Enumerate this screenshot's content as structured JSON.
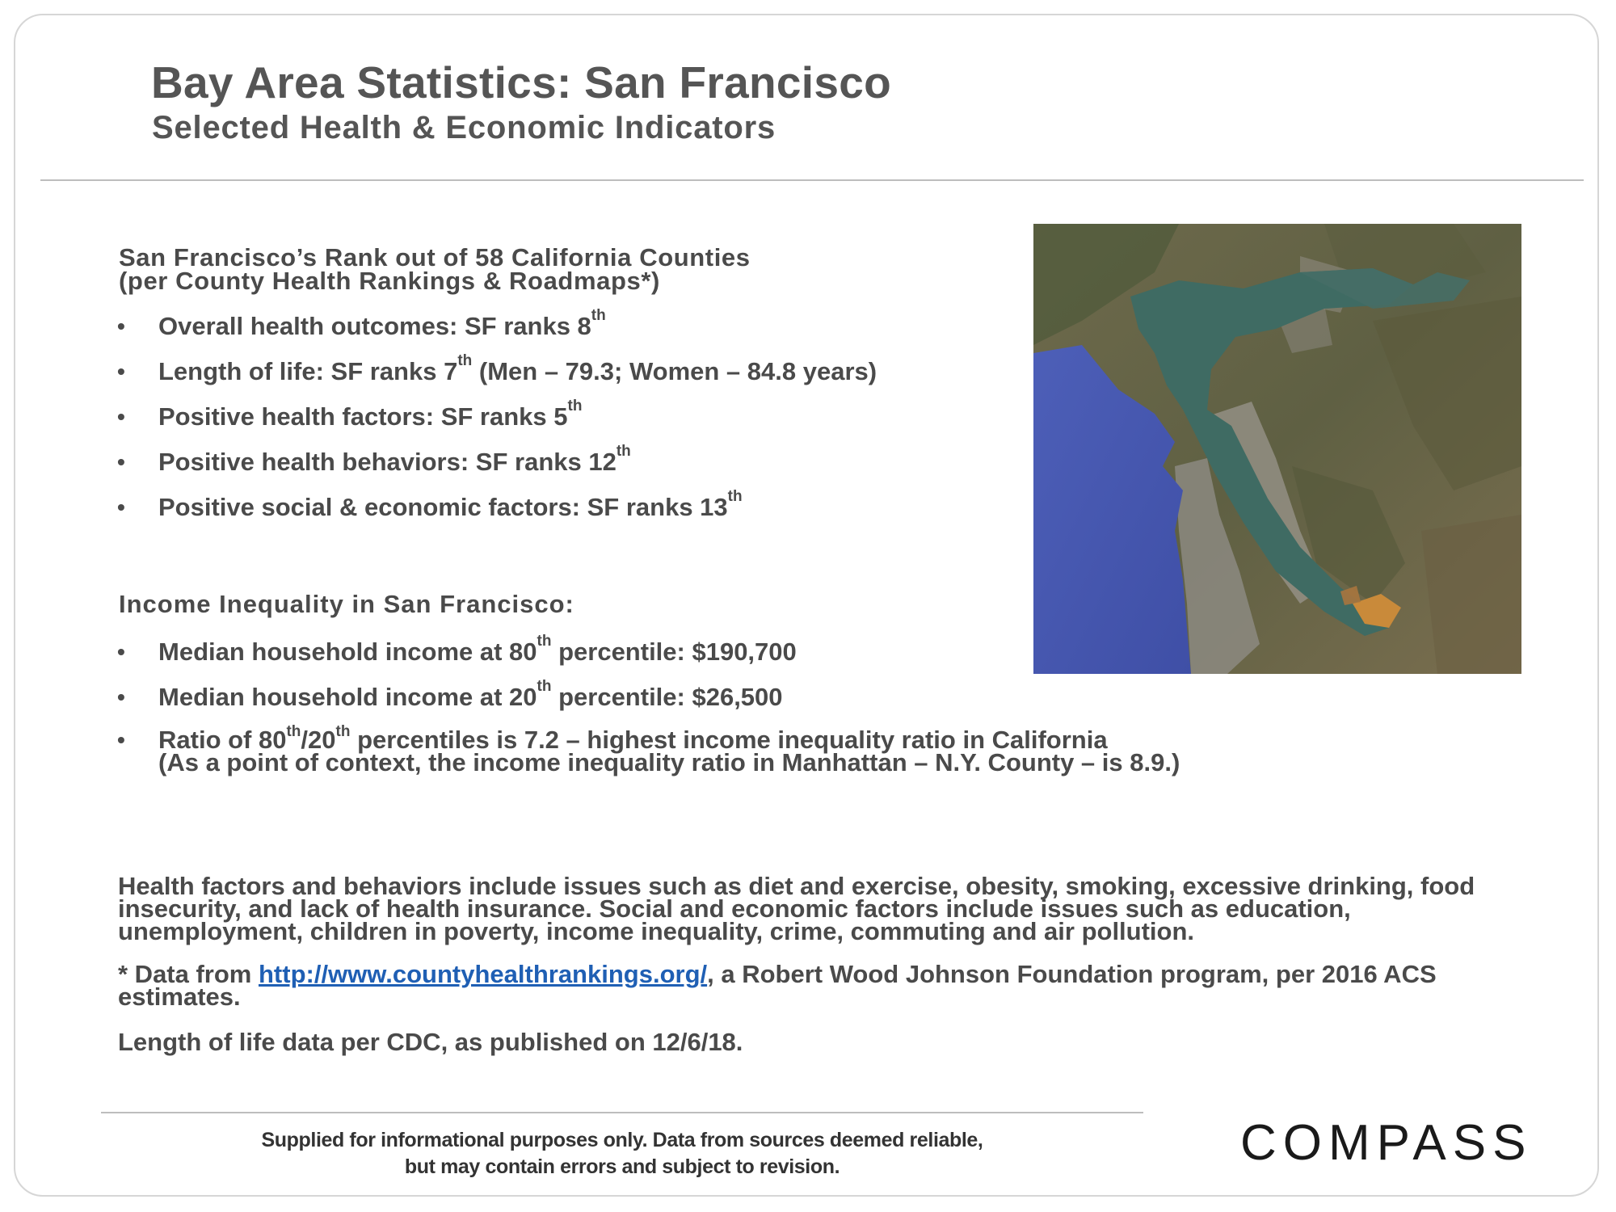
{
  "header": {
    "title": "Bay Area Statistics: San Francisco",
    "subtitle": "Selected Health & Economic Indicators"
  },
  "section_rank": {
    "heading_line1": "San Francisco’s  Rank  out  of 58  California  Counties",
    "heading_line2": "(per County Health Rankings & Roadmaps*)",
    "items": [
      {
        "text": "Overall health outcomes: SF ranks 8",
        "sup": "th",
        "after": ""
      },
      {
        "text": "Length of life: SF ranks 7",
        "sup": "th",
        "after": " (Men – 79.3; Women – 84.8 years)"
      },
      {
        "text": "Positive health factors: SF ranks 5",
        "sup": "th",
        "after": ""
      },
      {
        "text": "Positive health behaviors: SF ranks 12",
        "sup": "th",
        "after": ""
      },
      {
        "text": "Positive social & economic factors: SF ranks 13",
        "sup": "th",
        "after": ""
      }
    ]
  },
  "section_income": {
    "heading": "Income  Inequality  in  San  Francisco:",
    "items": [
      {
        "pre": "Median household income at 80",
        "sup": "th",
        "post": " percentile: $190,700"
      },
      {
        "pre": "Median household income at 20",
        "sup": "th",
        "post": " percentile:  $26,500"
      }
    ],
    "ratio": {
      "pre": "Ratio of 80",
      "sup1": "th",
      "mid": "/20",
      "sup2": "th",
      "post": " percentiles is 7.2 – highest income inequality ratio in California",
      "line2": "(As a point of context, the income inequality ratio in Manhattan – N.Y. County – is 8.9.)"
    }
  },
  "notes": {
    "factors": "Health factors and behaviors include issues such as diet and exercise, obesity, smoking, excessive drinking, food insecurity, and lack of health insurance. Social and economic factors include issues such as education, unemployment, children in poverty, income inequality, crime, commuting and air pollution.",
    "data_prefix": "* Data from ",
    "data_link": "http://www.countyhealthrankings.org/",
    "data_suffix": ", a Robert Wood Johnson Foundation program, per 2016 ACS estimates.",
    "cdc": "Length of life data per CDC, as published on 12/6/18."
  },
  "footer": {
    "line1": "Supplied for informational purposes only. Data from sources deemed reliable,",
    "line2": "but may contain errors and subject to revision.",
    "logo": "COMPASS"
  },
  "colors": {
    "text": "#4a4a4a",
    "link": "#1f5fb4",
    "ocean": "#4c5fb4",
    "bay": "#3e6a62",
    "land": "#6d6748"
  }
}
